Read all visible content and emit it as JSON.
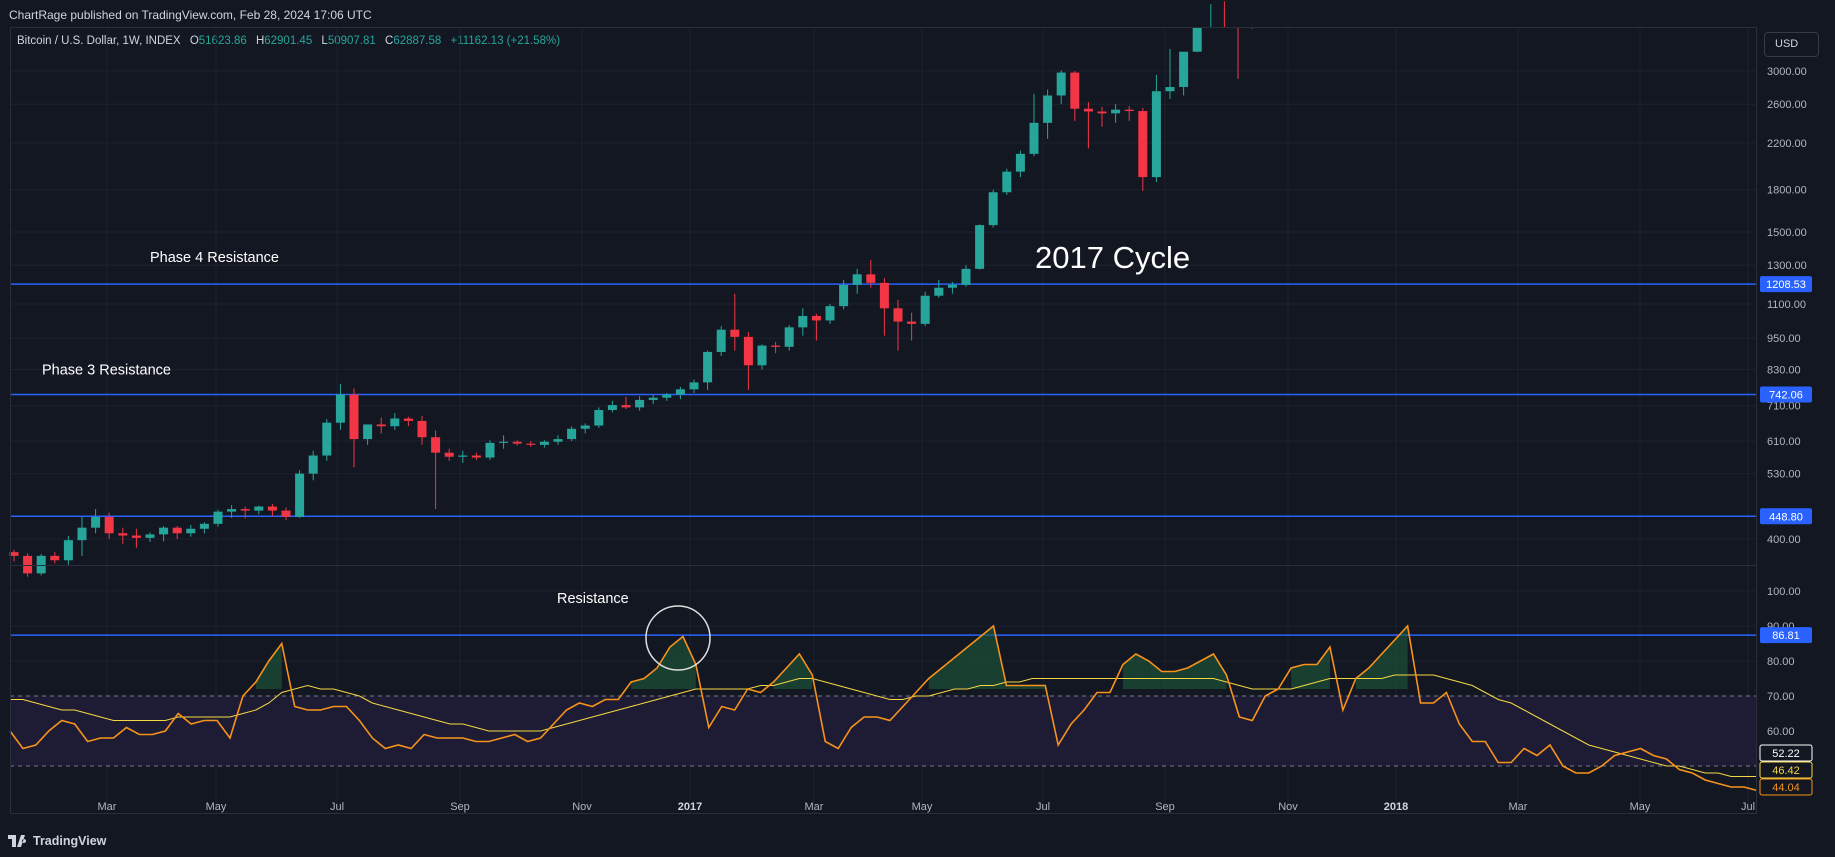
{
  "header": {
    "published_text": "ChartRage published on TradingView.com, Feb 28, 2024 17:06 UTC"
  },
  "legend": {
    "symbol_text": "Bitcoin / U.S. Dollar, 1W, INDEX",
    "open_label": "O",
    "open": "51623.86",
    "high_label": "H",
    "high": "62901.45",
    "low_label": "L",
    "low": "50907.81",
    "close_label": "C",
    "close": "62887.58",
    "change": "+11162.13 (+21.58%)"
  },
  "currency_button": "USD",
  "footer": {
    "brand": "TradingView"
  },
  "colors": {
    "background": "#131722",
    "up": "#26a69a",
    "down": "#f23645",
    "resistance": "#2962ff",
    "rsi": "#f7931a",
    "rsi_ma": "#f5d742",
    "rsi_band_fill": "#1e1c34"
  },
  "chart_data": [
    {
      "type": "candlestick",
      "title": "Bitcoin / U.S. Dollar, 1W, INDEX",
      "scale": "log",
      "y_ticks": [
        400,
        530,
        610,
        710,
        830,
        950,
        1100,
        1300,
        1500,
        1800,
        2200,
        2600,
        3000
      ],
      "y_tick_labels": [
        "400.00",
        "530.00",
        "610.00",
        "710.00",
        "830.00",
        "950.00",
        "1100.00",
        "1300.00",
        "1500.00",
        "1800.00",
        "2200.00",
        "2600.00",
        "3000.00"
      ],
      "x_ticks": [
        "Mar",
        "May",
        "Jul",
        "Sep",
        "Nov",
        "2017",
        "Mar",
        "May",
        "Jul",
        "Sep",
        "Nov",
        "2018",
        "Mar",
        "May",
        "Jul"
      ],
      "resistance_lines": [
        {
          "label": "Phase 4 Resistance",
          "value": 1208.53,
          "price_label": "1208.53"
        },
        {
          "label": "Phase 3 Resistance",
          "value": 742.06,
          "price_label": "742.06"
        },
        {
          "label": "",
          "value": 448.8,
          "price_label": "448.80"
        }
      ],
      "annotation": "2017 Cycle",
      "candles_ohlc": [
        [
          378,
          382,
          363,
          372
        ],
        [
          372,
          376,
          340,
          345
        ],
        [
          345,
          375,
          342,
          372
        ],
        [
          372,
          378,
          360,
          365
        ],
        [
          365,
          405,
          358,
          398
        ],
        [
          398,
          440,
          372,
          420
        ],
        [
          420,
          455,
          410,
          440
        ],
        [
          440,
          448,
          400,
          410
        ],
        [
          410,
          420,
          392,
          406
        ],
        [
          406,
          418,
          385,
          402
        ],
        [
          402,
          412,
          395,
          408
        ],
        [
          408,
          423,
          396,
          420
        ],
        [
          420,
          423,
          400,
          410
        ],
        [
          410,
          425,
          404,
          418
        ],
        [
          418,
          430,
          410,
          427
        ],
        [
          427,
          454,
          422,
          450
        ],
        [
          450,
          463,
          438,
          455
        ],
        [
          455,
          460,
          437,
          452
        ],
        [
          452,
          462,
          445,
          460
        ],
        [
          460,
          465,
          441,
          452
        ],
        [
          452,
          458,
          434,
          440
        ],
        [
          440,
          538,
          438,
          530
        ],
        [
          530,
          585,
          515,
          573
        ],
        [
          573,
          670,
          560,
          660
        ],
        [
          660,
          780,
          640,
          745
        ],
        [
          745,
          765,
          545,
          615
        ],
        [
          615,
          650,
          600,
          655
        ],
        [
          655,
          675,
          630,
          650
        ],
        [
          650,
          688,
          640,
          672
        ],
        [
          672,
          677,
          650,
          665
        ],
        [
          665,
          680,
          600,
          620
        ],
        [
          620,
          638,
          455,
          580
        ],
        [
          580,
          590,
          560,
          570
        ],
        [
          570,
          585,
          555,
          573
        ],
        [
          573,
          580,
          562,
          568
        ],
        [
          568,
          612,
          562,
          605
        ],
        [
          605,
          625,
          590,
          608
        ],
        [
          608,
          612,
          598,
          603
        ],
        [
          603,
          610,
          595,
          600
        ],
        [
          600,
          612,
          593,
          608
        ],
        [
          608,
          625,
          600,
          615
        ],
        [
          615,
          650,
          610,
          643
        ],
        [
          643,
          658,
          630,
          652
        ],
        [
          652,
          705,
          645,
          697
        ],
        [
          697,
          725,
          690,
          712
        ],
        [
          712,
          738,
          700,
          705
        ],
        [
          705,
          740,
          695,
          728
        ],
        [
          728,
          745,
          715,
          735
        ],
        [
          735,
          750,
          725,
          745
        ],
        [
          745,
          770,
          730,
          762
        ],
        [
          762,
          795,
          750,
          785
        ],
        [
          785,
          900,
          760,
          895
        ],
        [
          895,
          1000,
          880,
          985
        ],
        [
          985,
          1150,
          900,
          955
        ],
        [
          955,
          975,
          760,
          845
        ],
        [
          845,
          925,
          830,
          920
        ],
        [
          920,
          935,
          890,
          915
        ],
        [
          915,
          1005,
          900,
          995
        ],
        [
          995,
          1080,
          960,
          1045
        ],
        [
          1045,
          1055,
          940,
          1025
        ],
        [
          1025,
          1100,
          1010,
          1090
        ],
        [
          1090,
          1220,
          1075,
          1195
        ],
        [
          1195,
          1280,
          1150,
          1250
        ],
        [
          1250,
          1330,
          1180,
          1205
        ],
        [
          1205,
          1230,
          960,
          1080
        ],
        [
          1080,
          1120,
          900,
          1020
        ],
        [
          1020,
          1060,
          940,
          1010
        ],
        [
          1010,
          1160,
          1000,
          1140
        ],
        [
          1140,
          1220,
          1130,
          1180
        ],
        [
          1180,
          1210,
          1150,
          1195
        ],
        [
          1195,
          1300,
          1185,
          1280
        ],
        [
          1280,
          1550,
          1275,
          1545
        ],
        [
          1545,
          1800,
          1530,
          1780
        ],
        [
          1780,
          1970,
          1760,
          1945
        ],
        [
          1945,
          2130,
          1900,
          2100
        ],
        [
          2100,
          2720,
          2080,
          2400
        ],
        [
          2400,
          2770,
          2240,
          2700
        ],
        [
          2700,
          3010,
          2600,
          2980
        ],
        [
          2980,
          3000,
          2420,
          2550
        ],
        [
          2550,
          2625,
          2150,
          2520
        ],
        [
          2520,
          2570,
          2360,
          2500
        ],
        [
          2500,
          2600,
          2400,
          2540
        ],
        [
          2540,
          2580,
          2420,
          2525
        ],
        [
          2525,
          2560,
          1790,
          1900
        ],
        [
          1900,
          2950,
          1860,
          2750
        ],
        [
          2750,
          3300,
          2660,
          2800
        ],
        [
          2800,
          3050,
          2700,
          3260
        ],
        [
          3260,
          4400,
          3250,
          4090
        ],
        [
          4090,
          4500,
          4000,
          4400
        ],
        [
          4400,
          4700,
          4050,
          4370
        ],
        [
          4370,
          4800,
          2900,
          3700
        ],
        [
          3700,
          4200,
          3600,
          3900
        ]
      ]
    },
    {
      "type": "line",
      "title": "RSI",
      "ylim": [
        40,
        100
      ],
      "y_ticks": [
        60,
        70,
        80,
        90,
        100
      ],
      "y_tick_labels": [
        "60.00",
        "70.00",
        "80.00",
        "90.00",
        "100.00"
      ],
      "bands": [
        50,
        70
      ],
      "resistance": {
        "label": "Resistance",
        "value": 86.81,
        "price_label": "86.81"
      },
      "last_values": {
        "rsi_ma": "52.22",
        "rsi": "46.42",
        "other": "44.04"
      },
      "series": [
        {
          "name": "",
          "values": [
            60,
            55,
            56,
            60,
            63,
            62,
            57,
            58,
            58,
            61,
            59,
            59,
            60,
            65,
            62,
            63,
            63,
            58,
            70,
            74,
            80,
            85,
            67,
            66,
            66,
            67,
            67,
            63,
            58,
            55,
            56,
            55,
            59,
            58,
            58,
            58,
            57,
            57,
            58,
            59,
            57,
            58,
            62,
            66,
            68,
            67,
            69,
            69,
            74,
            75,
            78,
            84,
            87,
            79,
            61,
            67,
            66,
            72,
            71,
            74,
            78,
            82,
            76,
            57,
            55,
            61,
            64,
            64,
            63,
            67,
            71,
            75,
            78,
            81,
            84,
            87,
            90,
            73,
            73,
            73,
            73,
            56,
            62,
            66,
            71,
            71,
            79,
            82,
            80,
            77,
            77,
            78,
            80,
            82,
            76,
            64,
            63,
            70,
            72,
            78,
            79,
            79,
            84,
            66,
            75,
            78,
            82,
            86,
            90,
            68,
            68,
            71,
            62,
            57,
            57,
            51,
            51,
            55,
            53,
            56,
            50,
            48,
            48,
            50,
            53,
            54,
            55,
            53,
            52,
            49,
            48,
            46,
            45,
            44,
            44,
            43
          ]
        },
        {
          "name": "",
          "values": [
            69,
            69,
            68,
            67,
            66,
            66,
            65,
            64,
            63,
            63,
            63,
            63,
            63,
            64,
            64,
            64,
            64,
            64,
            65,
            66,
            68,
            71,
            72,
            73,
            72,
            72,
            71,
            70,
            68,
            67,
            66,
            65,
            64,
            63,
            62,
            62,
            61,
            60,
            60,
            60,
            60,
            60,
            61,
            62,
            63,
            64,
            65,
            66,
            67,
            68,
            69,
            70,
            71,
            72,
            72,
            72,
            72,
            72,
            73,
            73,
            74,
            75,
            75,
            74,
            73,
            72,
            71,
            70,
            69,
            69,
            70,
            70,
            71,
            72,
            72,
            73,
            73,
            74,
            74,
            75,
            75,
            75,
            75,
            75,
            75,
            75,
            75,
            75,
            75,
            75,
            75,
            75,
            75,
            75,
            74,
            73,
            72,
            72,
            72,
            72,
            73,
            74,
            75,
            75,
            75,
            75,
            75,
            76,
            76,
            76,
            76,
            75,
            74,
            73,
            71,
            69,
            68,
            66,
            64,
            62,
            60,
            58,
            56,
            55,
            54,
            53,
            52,
            51,
            50,
            50,
            49,
            48,
            48,
            47,
            47,
            47
          ]
        }
      ]
    }
  ]
}
